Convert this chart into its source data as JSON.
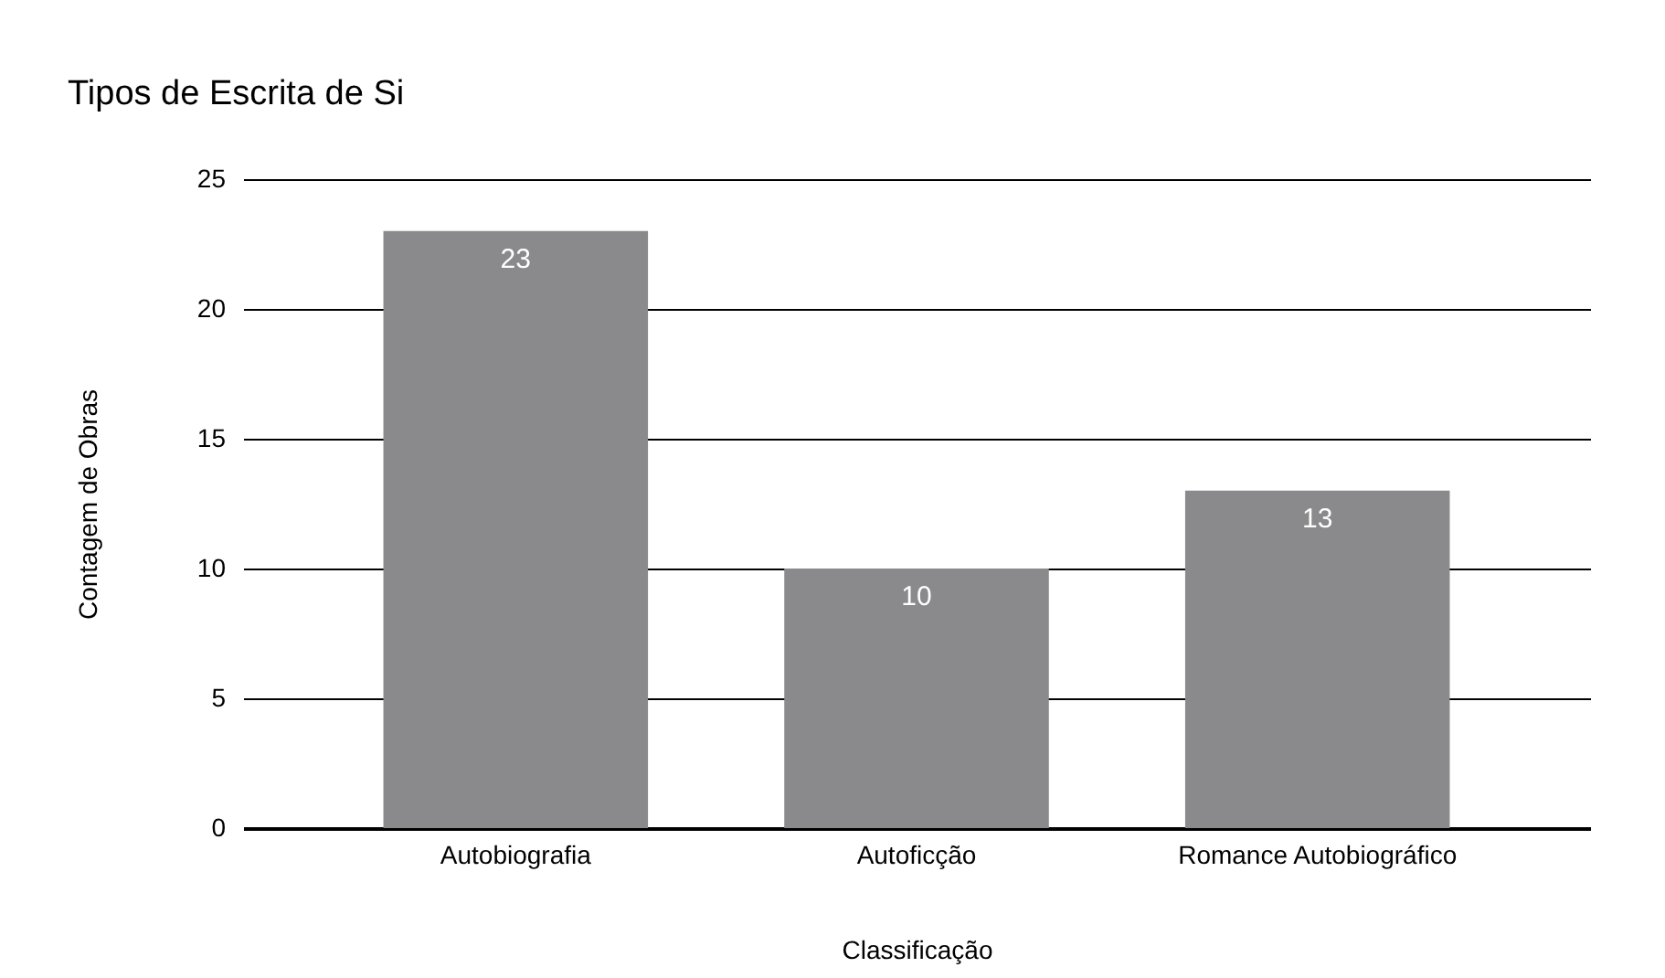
{
  "chart_data": {
    "type": "bar",
    "title": "Tipos de Escrita de Si",
    "xlabel": "Classificação",
    "ylabel": "Contagem de Obras",
    "categories": [
      "Autobiografia",
      "Autoficção",
      "Romance Autobiográfico"
    ],
    "values": [
      23,
      10,
      13
    ],
    "color": "#8a8a8c",
    "ylim": [
      0,
      25
    ],
    "yticks": [
      0,
      5,
      10,
      15,
      20,
      25
    ],
    "grid": "y",
    "data_labels": true
  }
}
